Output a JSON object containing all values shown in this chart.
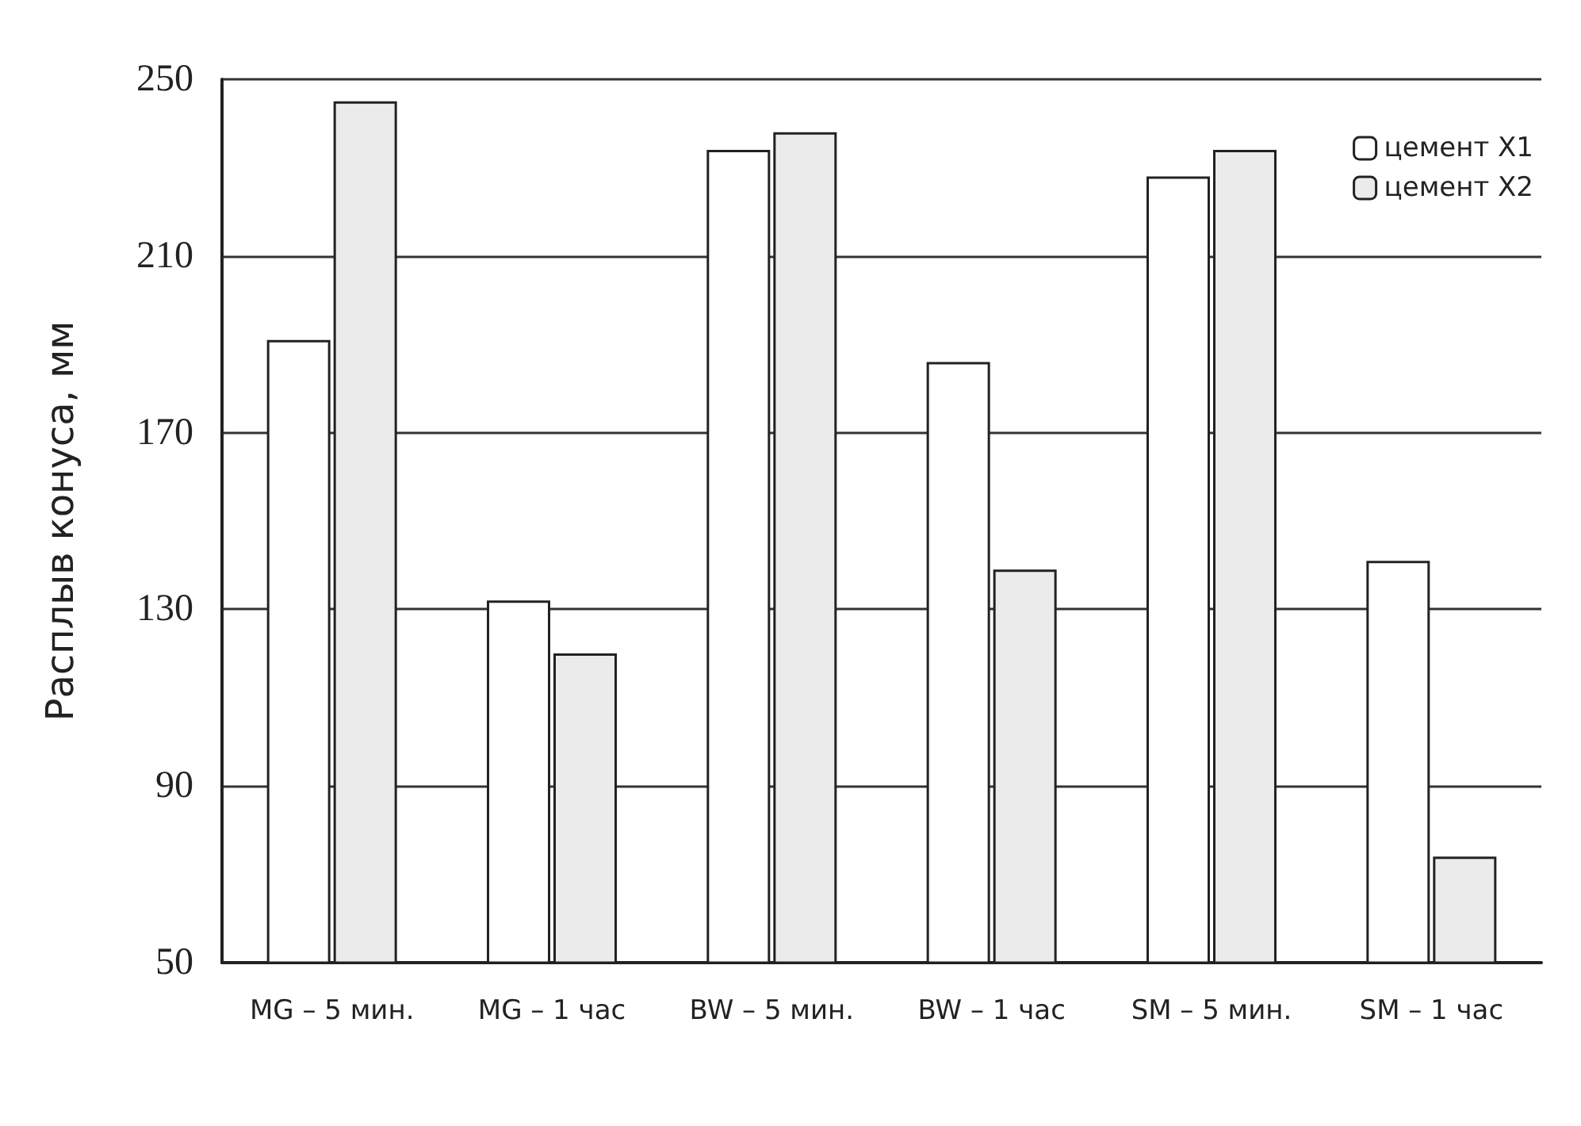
{
  "chart_data": {
    "type": "bar",
    "ylabel": "Расплыв конуса, мм",
    "categories": [
      "MG – 5 мин.",
      "MG – 1 час",
      "BW – 5 мин.",
      "BW – 1 час",
      "SM – 5 мин.",
      "SM – 1 час"
    ],
    "series": [
      {
        "name": "цемент X1",
        "color": "#ffffff",
        "values": [
          191,
          132,
          234,
          186,
          228,
          141
        ]
      },
      {
        "name": "цемент X2",
        "color": "#ebebeb",
        "values": [
          245,
          120,
          238,
          139,
          234,
          74
        ]
      }
    ],
    "ylim": [
      50,
      250
    ],
    "yticks": [
      50,
      90,
      130,
      170,
      210,
      250
    ],
    "grid": "y",
    "legend": "top right"
  }
}
